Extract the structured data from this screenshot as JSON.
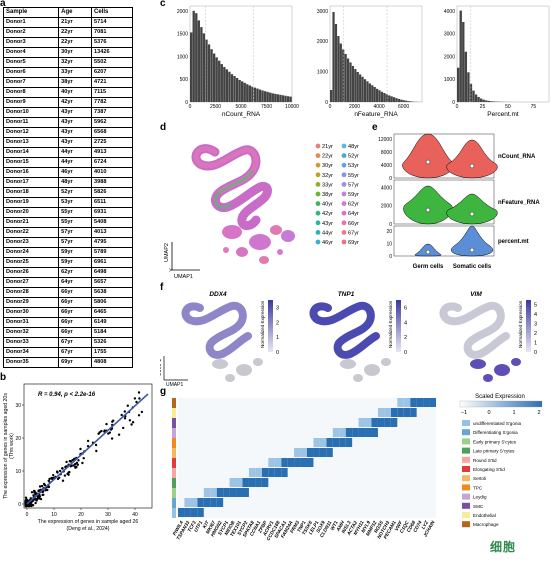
{
  "labels": {
    "a": "a",
    "b": "b",
    "c": "c",
    "d": "d",
    "e": "e",
    "f": "f",
    "g": "g"
  },
  "table": {
    "headers": [
      "Sample",
      "Age",
      "Cells"
    ],
    "rows": [
      [
        "Donor1",
        "21yr",
        "5714"
      ],
      [
        "Donor2",
        "22yr",
        "7081"
      ],
      [
        "Donor3",
        "22yr",
        "5376"
      ],
      [
        "Donor4",
        "30yr",
        "13426"
      ],
      [
        "Donor5",
        "32yr",
        "5502"
      ],
      [
        "Donor6",
        "33yr",
        "6207"
      ],
      [
        "Donor7",
        "38yr",
        "4721"
      ],
      [
        "Donor8",
        "40yr",
        "7115"
      ],
      [
        "Donor9",
        "42yr",
        "7782"
      ],
      [
        "Donor10",
        "43yr",
        "7387"
      ],
      [
        "Donor11",
        "43yr",
        "5962"
      ],
      [
        "Donor12",
        "43yr",
        "6568"
      ],
      [
        "Donor13",
        "43yr",
        "2725"
      ],
      [
        "Donor14",
        "44yr",
        "4913"
      ],
      [
        "Donor15",
        "44yr",
        "6724"
      ],
      [
        "Donor16",
        "46yr",
        "4010"
      ],
      [
        "Donor17",
        "48yr",
        "3988"
      ],
      [
        "Donor18",
        "52yr",
        "5826"
      ],
      [
        "Donor19",
        "53yr",
        "6511"
      ],
      [
        "Donor20",
        "55yr",
        "6931"
      ],
      [
        "Donor21",
        "55yr",
        "5408"
      ],
      [
        "Donor22",
        "57yr",
        "4013"
      ],
      [
        "Donor23",
        "57yr",
        "4795"
      ],
      [
        "Donor24",
        "59yr",
        "5789"
      ],
      [
        "Donor25",
        "59yr",
        "6961"
      ],
      [
        "Donor26",
        "62yr",
        "6498"
      ],
      [
        "Donor27",
        "64yr",
        "5657"
      ],
      [
        "Donor28",
        "66yr",
        "5638"
      ],
      [
        "Donor29",
        "66yr",
        "5806"
      ],
      [
        "Donor30",
        "66yr",
        "6465"
      ],
      [
        "Donor31",
        "66yr",
        "6149"
      ],
      [
        "Donor32",
        "66yr",
        "5184"
      ],
      [
        "Donor33",
        "67yr",
        "5326"
      ],
      [
        "Donor34",
        "67yr",
        "1755"
      ],
      [
        "Donor35",
        "69yr",
        "4808"
      ]
    ]
  },
  "scatter": {
    "stat": "R = 0.94, p < 2.2e-16",
    "ylabel1": "The expression of genes in samples aged 20s",
    "ylabel2": "(This work)",
    "xlabel1": "The expression of genes in sample aged 26",
    "xlabel2": "(Deng et al., 2024)",
    "xticks": [
      "0",
      "10",
      "20",
      "30",
      "40"
    ],
    "yticks": [
      "0",
      "10",
      "20",
      "30"
    ]
  },
  "chart_data": [
    {
      "type": "bar",
      "title": "",
      "xlabel": "nCount_RNA",
      "xticks": [
        "0",
        "2500",
        "5000",
        "7500",
        "10000"
      ],
      "yticks": [
        "0",
        "500",
        "1000",
        "1500",
        "2000"
      ],
      "xlim": [
        0,
        10000
      ],
      "ylim": [
        0,
        2000
      ],
      "values": [
        1450,
        1900,
        1850,
        1700,
        1560,
        1430,
        1300,
        1200,
        1100,
        1010,
        930,
        860,
        790,
        730,
        680,
        630,
        580,
        540,
        500,
        460,
        430,
        400,
        370,
        345,
        320,
        300,
        280,
        260,
        240,
        225,
        210,
        195,
        180,
        170,
        160,
        150,
        140,
        130,
        120,
        112
      ]
    },
    {
      "type": "bar",
      "title": "",
      "xlabel": "nFeature_RNA",
      "xticks": [
        "0",
        "2000",
        "4000",
        "6000"
      ],
      "yticks": [
        "0",
        "1000",
        "2000",
        "3000"
      ],
      "xlim": [
        0,
        7500
      ],
      "ylim": [
        0,
        3200
      ],
      "values": [
        400,
        3000,
        2600,
        2200,
        1950,
        1750,
        1600,
        1450,
        1320,
        1200,
        1100,
        1000,
        920,
        840,
        760,
        690,
        620,
        560,
        500,
        440,
        390,
        340,
        300,
        260,
        220,
        190,
        160,
        130,
        100,
        80,
        60,
        45,
        30,
        20,
        12,
        6,
        3,
        1
      ]
    },
    {
      "type": "bar",
      "title": "",
      "xlabel": "Percent.mt",
      "xticks": [
        "0",
        "25",
        "50",
        "75"
      ],
      "yticks": [
        "0",
        "1000",
        "2000",
        "3000",
        "4000"
      ],
      "xlim": [
        0,
        90
      ],
      "ylim": [
        0,
        4200
      ],
      "values": [
        1500,
        4000,
        3500,
        2200,
        1300,
        800,
        500,
        330,
        220,
        150,
        100,
        70,
        50,
        35,
        25,
        18,
        12,
        9,
        6,
        4,
        3,
        2,
        2,
        1,
        1,
        1,
        1,
        1,
        1,
        1,
        1,
        1,
        1,
        1,
        1,
        1
      ]
    }
  ],
  "umap": {
    "axis_y": "UMAP2",
    "axis_x": "UMAP1"
  },
  "ages_legend": [
    {
      "label": "21yr",
      "color": "#e8807a"
    },
    {
      "label": "48yr",
      "color": "#5fb6e0"
    },
    {
      "label": "22yr",
      "color": "#e38a52"
    },
    {
      "label": "52yr",
      "color": "#4aa8d8"
    },
    {
      "label": "30yr",
      "color": "#d49a2c"
    },
    {
      "label": "53yr",
      "color": "#6c9fe0"
    },
    {
      "label": "32yr",
      "color": "#bca41f"
    },
    {
      "label": "55yr",
      "color": "#8b93e8"
    },
    {
      "label": "33yr",
      "color": "#98ad1f"
    },
    {
      "label": "57yr",
      "color": "#a98ae8"
    },
    {
      "label": "38yr",
      "color": "#6db532"
    },
    {
      "label": "59yr",
      "color": "#c47fe2"
    },
    {
      "label": "40yr",
      "color": "#3cb656"
    },
    {
      "label": "62yr",
      "color": "#d676d6"
    },
    {
      "label": "42yr",
      "color": "#2cb784"
    },
    {
      "label": "64yr",
      "color": "#e070c0"
    },
    {
      "label": "43yr",
      "color": "#28b5a4"
    },
    {
      "label": "66yr",
      "color": "#e873a8"
    },
    {
      "label": "44yr",
      "color": "#2ab3bf"
    },
    {
      "label": "67yr",
      "color": "#ed788f"
    },
    {
      "label": "46yr",
      "color": "#3bb0d4"
    },
    {
      "label": "69yr",
      "color": "#ee6f8a"
    }
  ],
  "violin": {
    "metrics": [
      "nCount_RNA",
      "nFeature_RNA",
      "percent.mt"
    ],
    "groups": [
      "Germ cells",
      "Somatic cells"
    ],
    "yticks_count": [
      "0",
      "4000",
      "8000",
      "12000"
    ],
    "yticks_feature": [
      "0",
      "2000",
      "4000"
    ],
    "yticks_mt": [
      "0",
      "10",
      "20"
    ],
    "colors": [
      "#e8625b",
      "#3eb53e",
      "#5b8ed6"
    ]
  },
  "feature_plots": {
    "genes": [
      "DDX4",
      "TNP1",
      "VIM"
    ],
    "legend_title": "Normalized Expression",
    "ticks": [
      [
        "0",
        "1",
        "2",
        "3"
      ],
      [
        "0",
        "2",
        "4",
        "6"
      ],
      [
        "0",
        "1",
        "2",
        "3",
        "4",
        "5"
      ]
    ]
  },
  "heatmap": {
    "title": "Scaled Expression",
    "ticks": [
      "−1",
      "0",
      "1",
      "2"
    ],
    "genes": [
      "PIWIL4",
      "TSPAN33",
      "TCF3",
      "UTF1",
      "KIT",
      "MKI67",
      "HMGN2",
      "SYCP1",
      "MEIOB",
      "TEX101",
      "SYCP2",
      "SPATA8",
      "CCNA1",
      "ZPBP",
      "ACRV1",
      "CCDC168",
      "SPACA1",
      "FAM24A",
      "PRM3",
      "TNP1",
      "TSSK6",
      "LELP1",
      "SOX9",
      "CLDN11",
      "WT1",
      "AMH",
      "INSL3",
      "ACTA2",
      "MYH11",
      "MYL9",
      "MMP12",
      "RGS5",
      "NOTCH3",
      "PECAM1",
      "VWF",
      "C1QC",
      "CD68",
      "CD74",
      "LYZ",
      "JCHAIN"
    ],
    "legend": [
      {
        "label": "undifferentiated S'gonia",
        "color": "#8fc3e8"
      },
      {
        "label": "Differentiating S'gonia",
        "color": "#6aa5cf"
      },
      {
        "label": "Early primary S'cytes",
        "color": "#9ccf8a"
      },
      {
        "label": "Late primary S'cytes",
        "color": "#4aa35a"
      },
      {
        "label": "Round S'tid",
        "color": "#f6a8a0"
      },
      {
        "label": "Elongating S'tid",
        "color": "#e23a3a"
      },
      {
        "label": "Sertoli",
        "color": "#f5b862"
      },
      {
        "label": "TPC",
        "color": "#f08a1c"
      },
      {
        "label": "Leydig",
        "color": "#c6a3d8"
      },
      {
        "label": "SMC",
        "color": "#7a4fa6"
      },
      {
        "label": "Endothelial",
        "color": "#f4ee96"
      },
      {
        "label": "Macrophage",
        "color": "#b5651d"
      }
    ]
  },
  "watermark": "细胞"
}
